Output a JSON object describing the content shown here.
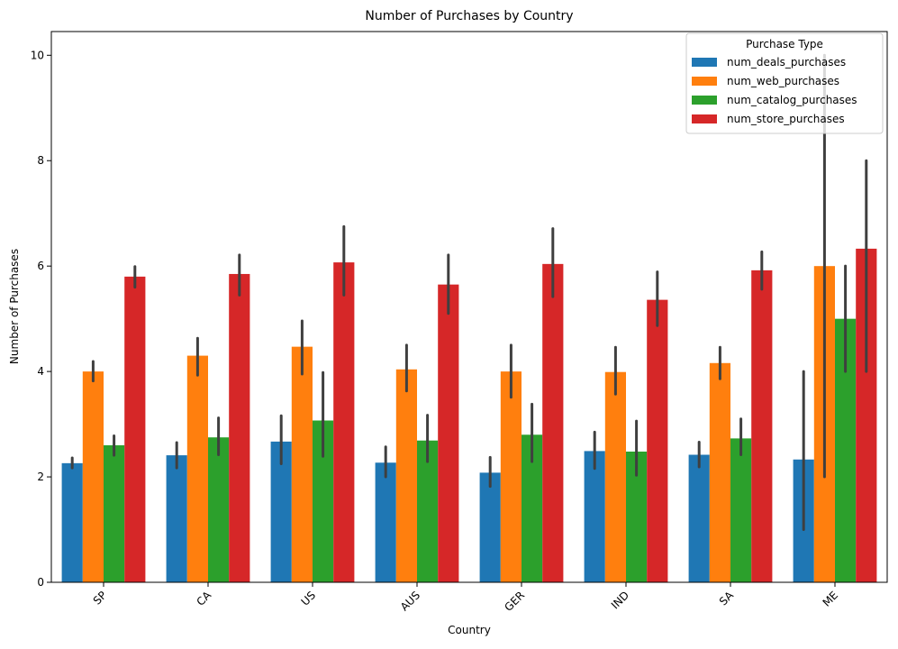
{
  "chart_data": {
    "type": "bar",
    "title": "Number of Purchases by Country",
    "xlabel": "Country",
    "ylabel": "Number of Purchases",
    "categories": [
      "SP",
      "CA",
      "US",
      "AUS",
      "GER",
      "IND",
      "SA",
      "ME"
    ],
    "ylim": [
      0,
      10.45
    ],
    "yticks": [
      0,
      2,
      4,
      6,
      8,
      10
    ],
    "grid": false,
    "legend": {
      "title": "Purchase Type",
      "position": "top-right"
    },
    "series": [
      {
        "name": "num_deals_purchases",
        "color": "#1f77b4",
        "values": [
          2.26,
          2.41,
          2.67,
          2.27,
          2.08,
          2.49,
          2.42,
          2.33
        ],
        "err_low": [
          2.17,
          2.17,
          2.25,
          2.0,
          1.82,
          2.16,
          2.19,
          1.0
        ],
        "err_high": [
          2.36,
          2.65,
          3.16,
          2.57,
          2.37,
          2.85,
          2.66,
          4.0
        ]
      },
      {
        "name": "num_web_purchases",
        "color": "#ff7f0e",
        "values": [
          4.0,
          4.3,
          4.47,
          4.04,
          4.0,
          3.99,
          4.16,
          6.0
        ],
        "err_low": [
          3.82,
          3.93,
          3.95,
          3.63,
          3.51,
          3.57,
          3.86,
          2.0
        ],
        "err_high": [
          4.19,
          4.63,
          4.96,
          4.5,
          4.5,
          4.46,
          4.46,
          10.0
        ]
      },
      {
        "name": "num_catalog_purchases",
        "color": "#2ca02c",
        "values": [
          2.6,
          2.75,
          3.07,
          2.69,
          2.8,
          2.48,
          2.73,
          5.0
        ],
        "err_low": [
          2.41,
          2.42,
          2.39,
          2.29,
          2.29,
          2.03,
          2.42,
          4.0
        ],
        "err_high": [
          2.78,
          3.12,
          3.98,
          3.17,
          3.38,
          3.06,
          3.1,
          6.0
        ]
      },
      {
        "name": "num_store_purchases",
        "color": "#d62728",
        "values": [
          5.8,
          5.85,
          6.07,
          5.65,
          6.04,
          5.36,
          5.92,
          6.33
        ],
        "err_low": [
          5.6,
          5.45,
          5.45,
          5.1,
          5.42,
          4.87,
          5.56,
          4.0
        ],
        "err_high": [
          5.99,
          6.21,
          6.75,
          6.21,
          6.71,
          5.89,
          6.27,
          8.0
        ]
      }
    ]
  }
}
